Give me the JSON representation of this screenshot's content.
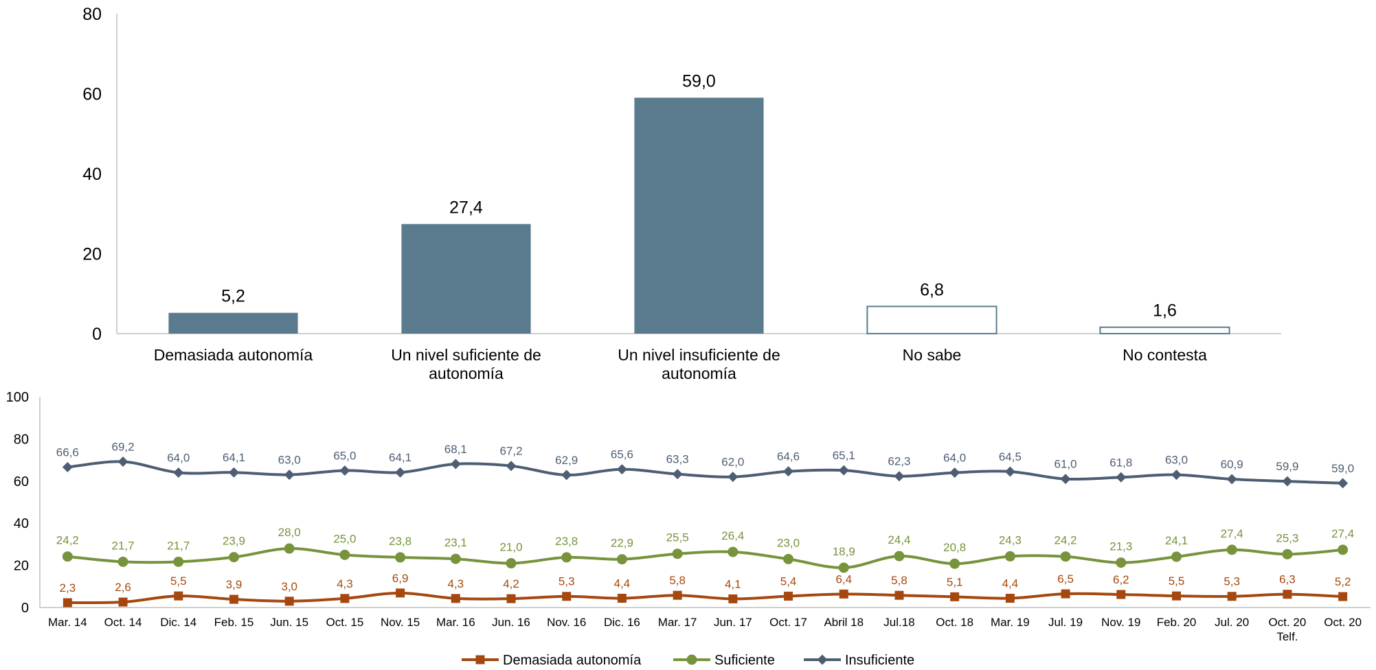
{
  "chart_data": [
    {
      "type": "bar",
      "title": "",
      "xlabel": "",
      "ylabel": "",
      "ylim": [
        0,
        80
      ],
      "yticks": [
        "0",
        "20",
        "40",
        "60",
        "80"
      ],
      "categories": [
        [
          "Demasiada autonomía"
        ],
        [
          "Un nivel suficiente de",
          "autonomía"
        ],
        [
          "Un nivel insuficiente de",
          "autonomía"
        ],
        [
          "No sabe"
        ],
        [
          "No contesta"
        ]
      ],
      "values": [
        5.2,
        27.4,
        59.0,
        6.8,
        1.6
      ],
      "value_labels": [
        "5,2",
        "27,4",
        "59,0",
        "6,8",
        "1,6"
      ],
      "bar_styles": [
        "filled",
        "filled",
        "filled",
        "outline",
        "outline"
      ],
      "colors": {
        "fill": "#5a7b8e",
        "outline": "#5a7b8e",
        "axis": "#bfbfbf"
      },
      "grid": false
    },
    {
      "type": "line",
      "title": "",
      "xlabel": "",
      "ylabel": "",
      "ylim": [
        0,
        100
      ],
      "yticks": [
        "0",
        "20",
        "40",
        "60",
        "80",
        "100"
      ],
      "x": [
        [
          "Mar. 14"
        ],
        [
          "Oct. 14"
        ],
        [
          "Dic. 14"
        ],
        [
          "Feb. 15"
        ],
        [
          "Jun. 15"
        ],
        [
          "Oct. 15"
        ],
        [
          "Nov. 15"
        ],
        [
          "Mar. 16"
        ],
        [
          "Jun. 16"
        ],
        [
          "Nov. 16"
        ],
        [
          "Dic. 16"
        ],
        [
          "Mar. 17"
        ],
        [
          "Jun. 17"
        ],
        [
          "Oct. 17"
        ],
        [
          "Abril 18"
        ],
        [
          "Jul.18"
        ],
        [
          "Oct. 18"
        ],
        [
          "Mar. 19"
        ],
        [
          "Jul. 19"
        ],
        [
          "Nov. 19"
        ],
        [
          "Feb. 20"
        ],
        [
          "Jul. 20"
        ],
        [
          "Oct. 20",
          "Telf."
        ],
        [
          "Oct. 20"
        ]
      ],
      "series": [
        {
          "name": "Demasiada autonomía",
          "color": "#a5480f",
          "marker": "square",
          "values": [
            2.3,
            2.6,
            5.5,
            3.9,
            3.0,
            4.3,
            6.9,
            4.3,
            4.2,
            5.3,
            4.4,
            5.8,
            4.1,
            5.4,
            6.4,
            5.8,
            5.1,
            4.4,
            6.5,
            6.2,
            5.5,
            5.3,
            6.3,
            5.2
          ],
          "labels": [
            "2,3",
            "2,6",
            "5,5",
            "3,9",
            "3,0",
            "4,3",
            "6,9",
            "4,3",
            "4,2",
            "5,3",
            "4,4",
            "5,8",
            "4,1",
            "5,4",
            "6,4",
            "5,8",
            "5,1",
            "4,4",
            "6,5",
            "6,2",
            "5,5",
            "5,3",
            "6,3",
            "5,2"
          ]
        },
        {
          "name": "Suficiente",
          "color": "#77933c",
          "marker": "circle",
          "values": [
            24.2,
            21.7,
            21.7,
            23.9,
            28.0,
            25.0,
            23.8,
            23.1,
            21.0,
            23.8,
            22.9,
            25.5,
            26.4,
            23.0,
            18.9,
            24.4,
            20.8,
            24.3,
            24.2,
            21.3,
            24.1,
            27.4,
            25.3,
            27.4
          ],
          "labels": [
            "24,2",
            "21,7",
            "21,7",
            "23,9",
            "28,0",
            "25,0",
            "23,8",
            "23,1",
            "21,0",
            "23,8",
            "22,9",
            "25,5",
            "26,4",
            "23,0",
            "18,9",
            "24,4",
            "20,8",
            "24,3",
            "24,2",
            "21,3",
            "24,1",
            "27,4",
            "25,3",
            "27,4"
          ]
        },
        {
          "name": "Insuficiente",
          "color": "#4d5e73",
          "marker": "diamond",
          "values": [
            66.6,
            69.2,
            64.0,
            64.1,
            63.0,
            65.0,
            64.1,
            68.1,
            67.2,
            62.9,
            65.6,
            63.3,
            62.0,
            64.6,
            65.1,
            62.3,
            64.0,
            64.5,
            61.0,
            61.8,
            63.0,
            60.9,
            59.9,
            59.0
          ],
          "labels": [
            "66,6",
            "69,2",
            "64,0",
            "64,1",
            "63,0",
            "65,0",
            "64,1",
            "68,1",
            "67,2",
            "62,9",
            "65,6",
            "63,3",
            "62,0",
            "64,6",
            "65,1",
            "62,3",
            "64,0",
            "64,5",
            "61,0",
            "61,8",
            "63,0",
            "60,9",
            "59,9",
            "59,0"
          ]
        }
      ],
      "legend": "bottom-center",
      "grid": false
    }
  ]
}
